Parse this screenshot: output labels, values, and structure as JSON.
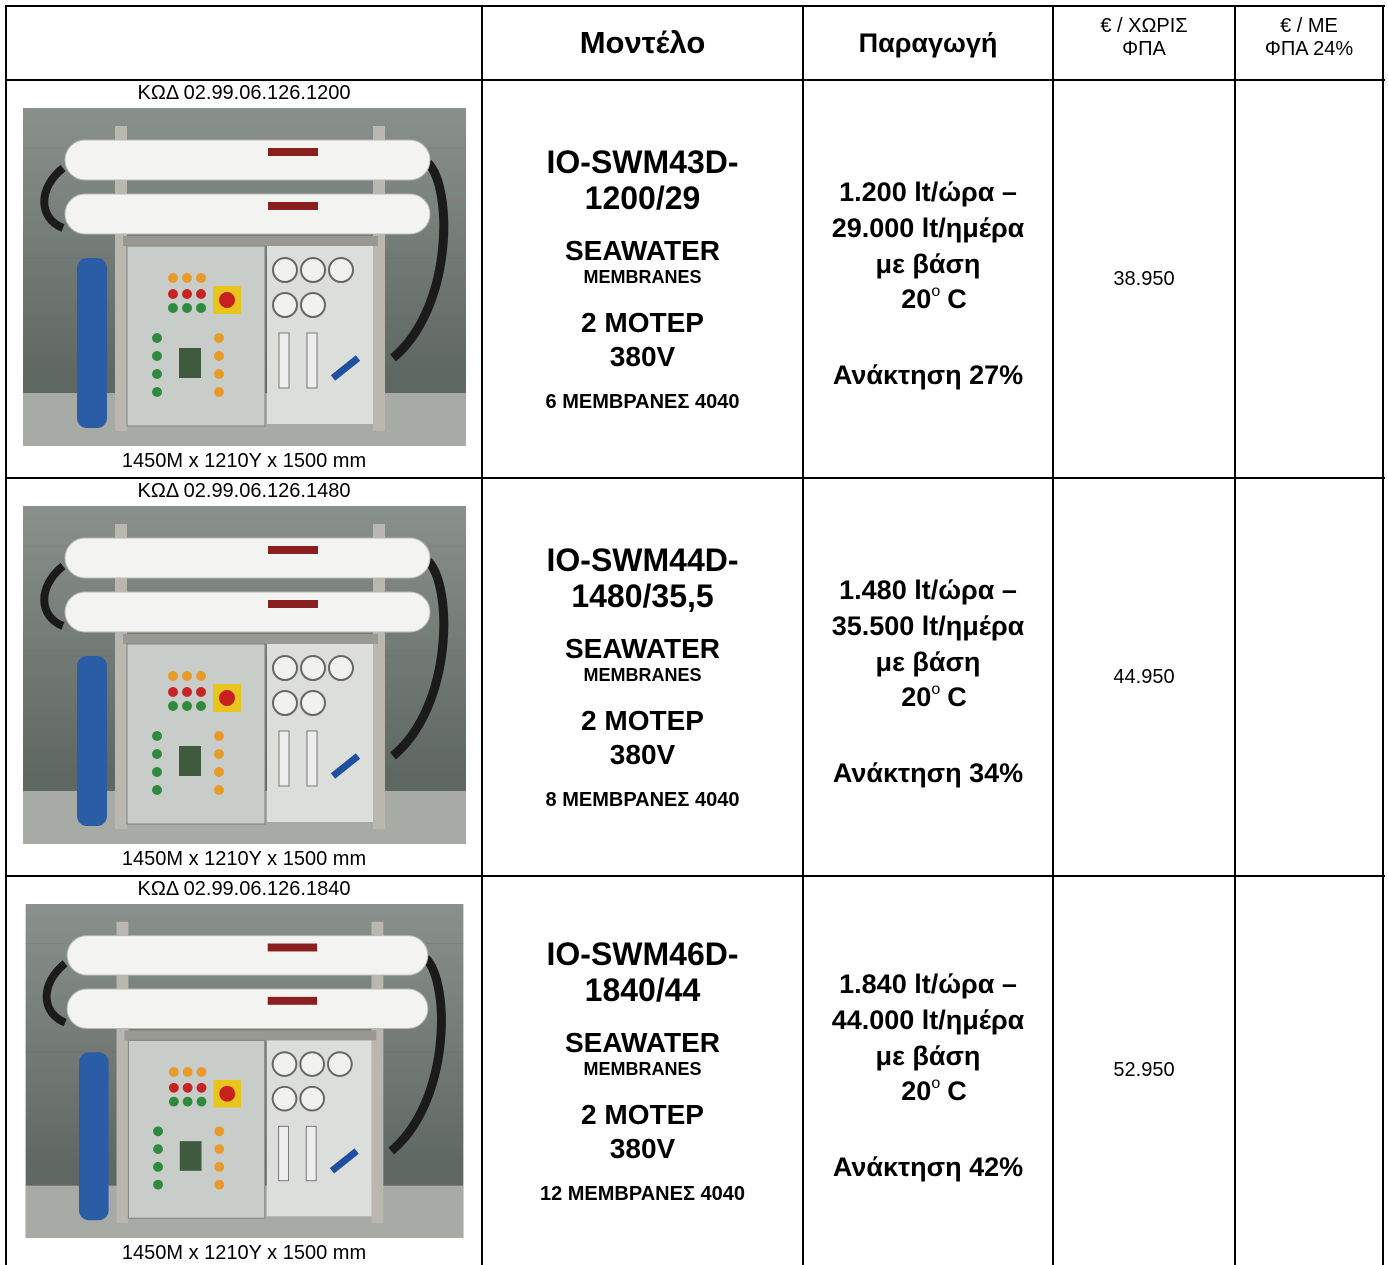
{
  "header": {
    "model": "Μοντέλο",
    "production": "Παραγωγή",
    "price_no_vat": [
      "€ / ΧΩΡΙΣ",
      "ΦΠΑ"
    ],
    "price_vat": [
      "€ / ΜΕ",
      "ΦΠΑ 24%"
    ]
  },
  "rows": [
    {
      "code": "ΚΩΔ 02.99.06.126.1200",
      "dimensions": "1450Μ x 1210Υ x 1500 mm",
      "model": [
        "IO-SWM43D-",
        "1200/29"
      ],
      "water": "SEAWATER",
      "membranes_label": "MEMBRANES",
      "motor": "2 ΜΟΤΕΡ",
      "voltage": "380V",
      "membranes": "6 ΜΕΜΒΡΑΝΕΣ 4040",
      "production": [
        "1.200 lt/ώρα –",
        "29.000 lt/ημέρα",
        "με βάση"
      ],
      "temperature": "20",
      "degree": "o",
      "temperature_unit": "C",
      "recovery": "Ανάκτηση 27%",
      "price": "38.950"
    },
    {
      "code": "ΚΩΔ 02.99.06.126.1480",
      "dimensions": "1450Μ x 1210Υ x 1500 mm",
      "model": [
        "IO-SWM44D-",
        "1480/35,5"
      ],
      "water": "SEAWATER",
      "membranes_label": "MEMBRANES",
      "motor": "2 ΜΟΤΕΡ",
      "voltage": "380V",
      "membranes": "8 ΜΕΜΒΡΑΝΕΣ 4040",
      "production": [
        "1.480 lt/ώρα –",
        "35.500 lt/ημέρα",
        "με βάση"
      ],
      "temperature": "20",
      "degree": "o",
      "temperature_unit": "C",
      "recovery": "Ανάκτηση 34%",
      "price": "44.950"
    },
    {
      "code": "ΚΩΔ 02.99.06.126.1840",
      "dimensions": "1450Μ x 1210Υ x 1500 mm",
      "model": [
        "IO-SWM46D-",
        "1840/44"
      ],
      "water": "SEAWATER",
      "membranes_label": "MEMBRANES",
      "motor": "2 ΜΟΤΕΡ",
      "voltage": "380V",
      "membranes": "12 ΜΕΜΒΡΑΝΕΣ 4040",
      "production": [
        "1.840 lt/ώρα –",
        "44.000 lt/ημέρα",
        "με βάση"
      ],
      "temperature": "20",
      "degree": "o",
      "temperature_unit": "C",
      "recovery": "Ανάκτηση 42%",
      "price": "52.950"
    }
  ]
}
